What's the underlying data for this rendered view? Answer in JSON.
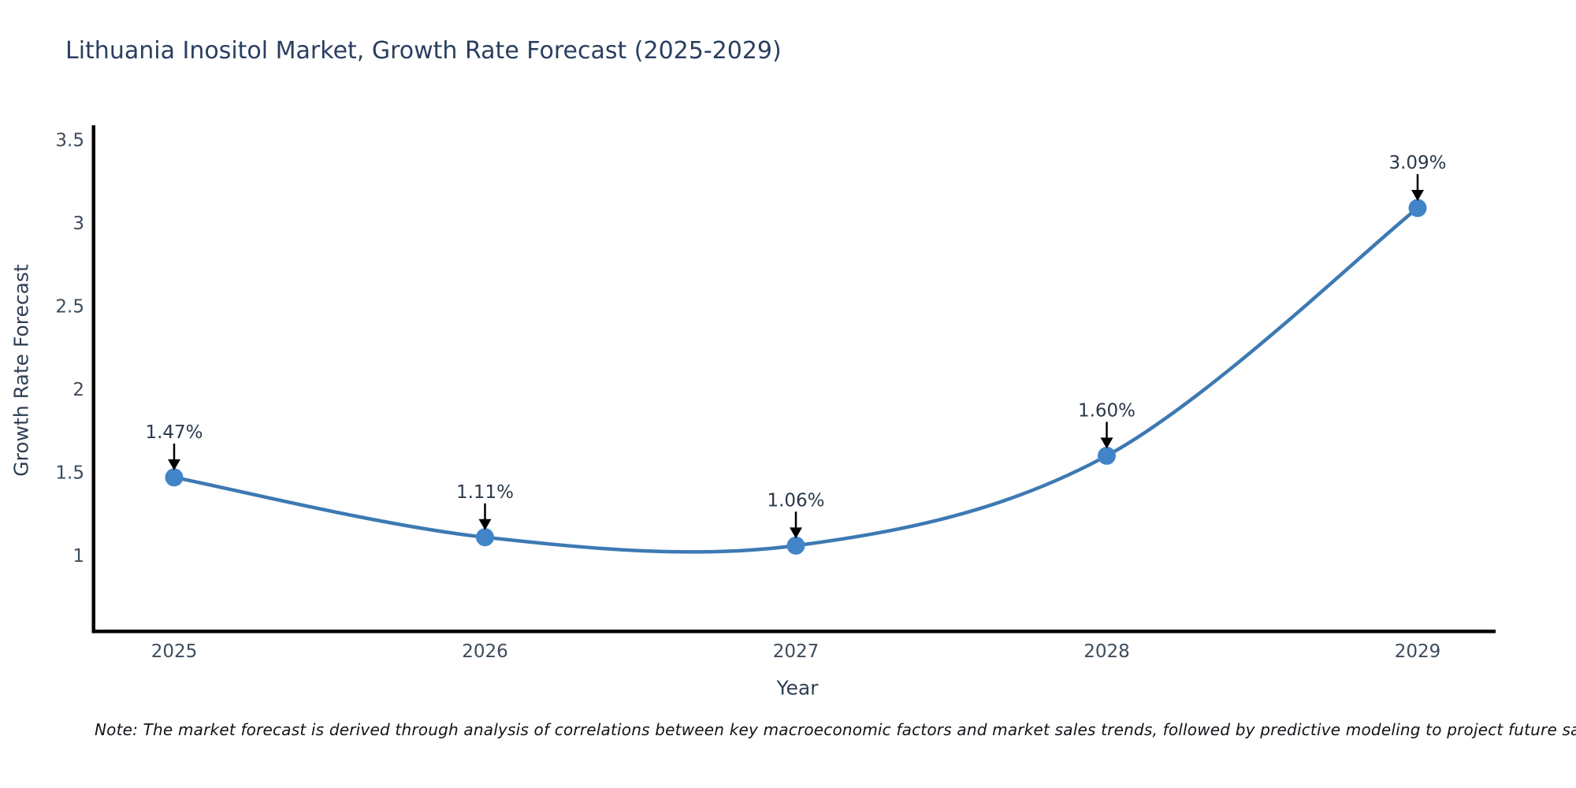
{
  "chart_data": {
    "type": "line",
    "title": "Lithuania Inositol Market, Growth Rate Forecast (2025-2029)",
    "xlabel": "Year",
    "ylabel": "Growth Rate Forecast",
    "x": [
      2025,
      2026,
      2027,
      2028,
      2029
    ],
    "values": [
      1.47,
      1.11,
      1.06,
      1.6,
      3.09
    ],
    "point_labels": [
      "1.47%",
      "1.11%",
      "1.06%",
      "1.60%",
      "3.09%"
    ],
    "xtick_labels": [
      "2025",
      "2026",
      "2027",
      "2028",
      "2029"
    ],
    "yticks": [
      1,
      1.5,
      2,
      2.5,
      3,
      3.5
    ],
    "ytick_labels": [
      "1",
      "1.5",
      "2",
      "2.5",
      "3",
      "3.5"
    ],
    "ylim": [
      0.54,
      3.59
    ],
    "grid": false,
    "legend": false,
    "line_color": "#3d79b3",
    "marker_color": "#4184c8",
    "axis_color": "#000000",
    "tick_color": "#3d4c5c",
    "annotation_color": "#2b3949",
    "annotation_arrow_color": "#000000"
  },
  "note": "Note: The market forecast is derived through analysis of correlations between key macroeconomic factors and market sales trends, followed by predictive modeling to project future sales"
}
